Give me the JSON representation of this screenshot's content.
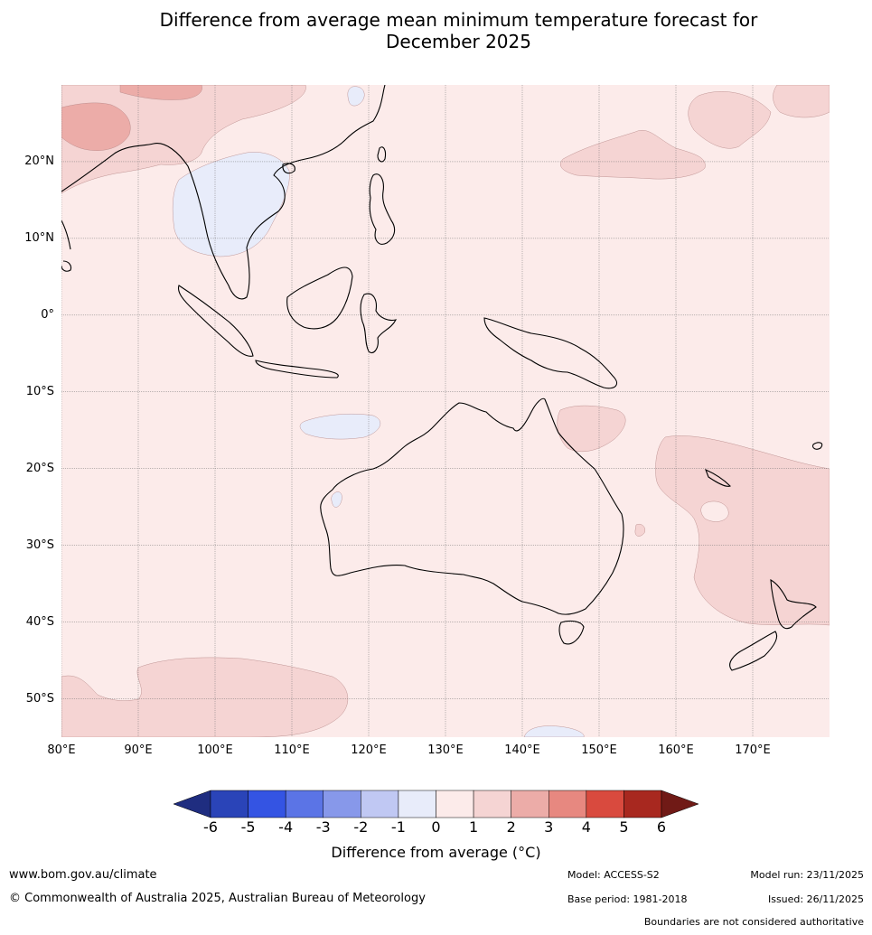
{
  "title": {
    "line1": "Difference from average mean minimum temperature forecast for",
    "line2": "December 2025"
  },
  "map": {
    "lon_range": [
      80,
      180
    ],
    "lat_range": [
      -55,
      30
    ],
    "lat_ticks": [
      {
        "value": 20,
        "label": "20°N"
      },
      {
        "value": 10,
        "label": "10°N"
      },
      {
        "value": 0,
        "label": "0°"
      },
      {
        "value": -10,
        "label": "10°S"
      },
      {
        "value": -20,
        "label": "20°S"
      },
      {
        "value": -30,
        "label": "30°S"
      },
      {
        "value": -40,
        "label": "40°S"
      },
      {
        "value": -50,
        "label": "50°S"
      }
    ],
    "lon_ticks": [
      {
        "value": 80,
        "label": "80°E"
      },
      {
        "value": 90,
        "label": "90°E"
      },
      {
        "value": 100,
        "label": "100°E"
      },
      {
        "value": 110,
        "label": "110°E"
      },
      {
        "value": 120,
        "label": "120°E"
      },
      {
        "value": 130,
        "label": "130°E"
      },
      {
        "value": 140,
        "label": "140°E"
      },
      {
        "value": 150,
        "label": "150°E"
      },
      {
        "value": 160,
        "label": "160°E"
      },
      {
        "value": 170,
        "label": "170°E"
      }
    ],
    "background_anomaly_class": "0 to 1",
    "colors": {
      "m1_0": "#e8ecfa",
      "p0_1": "#fcebea",
      "p1_2": "#f5d4d3",
      "p2_3": "#ecaca8"
    }
  },
  "colorbar": {
    "ticks": [
      "-6",
      "-5",
      "-4",
      "-3",
      "-2",
      "-1",
      "0",
      "1",
      "2",
      "3",
      "4",
      "5",
      "6"
    ],
    "colors": [
      "#1f2d80",
      "#2a44b8",
      "#3454e3",
      "#5b74e6",
      "#8798ea",
      "#c0c8f3",
      "#e8ecfa",
      "#fcebea",
      "#f5d4d3",
      "#ecaca8",
      "#e78880",
      "#d94a3e",
      "#a8281f",
      "#701a16"
    ],
    "label": "Difference from average (°C)"
  },
  "footer": {
    "website": "www.bom.gov.au/climate",
    "copyright": "© Commonwealth of Australia 2025, Australian Bureau of Meteorology",
    "model": "Model: ACCESS-S2",
    "base_period": "Base period: 1981-2018",
    "model_run": "Model run: 23/11/2025",
    "issued": "Issued: 26/11/2025",
    "disclaimer": "Boundaries are not considered authoritative"
  }
}
